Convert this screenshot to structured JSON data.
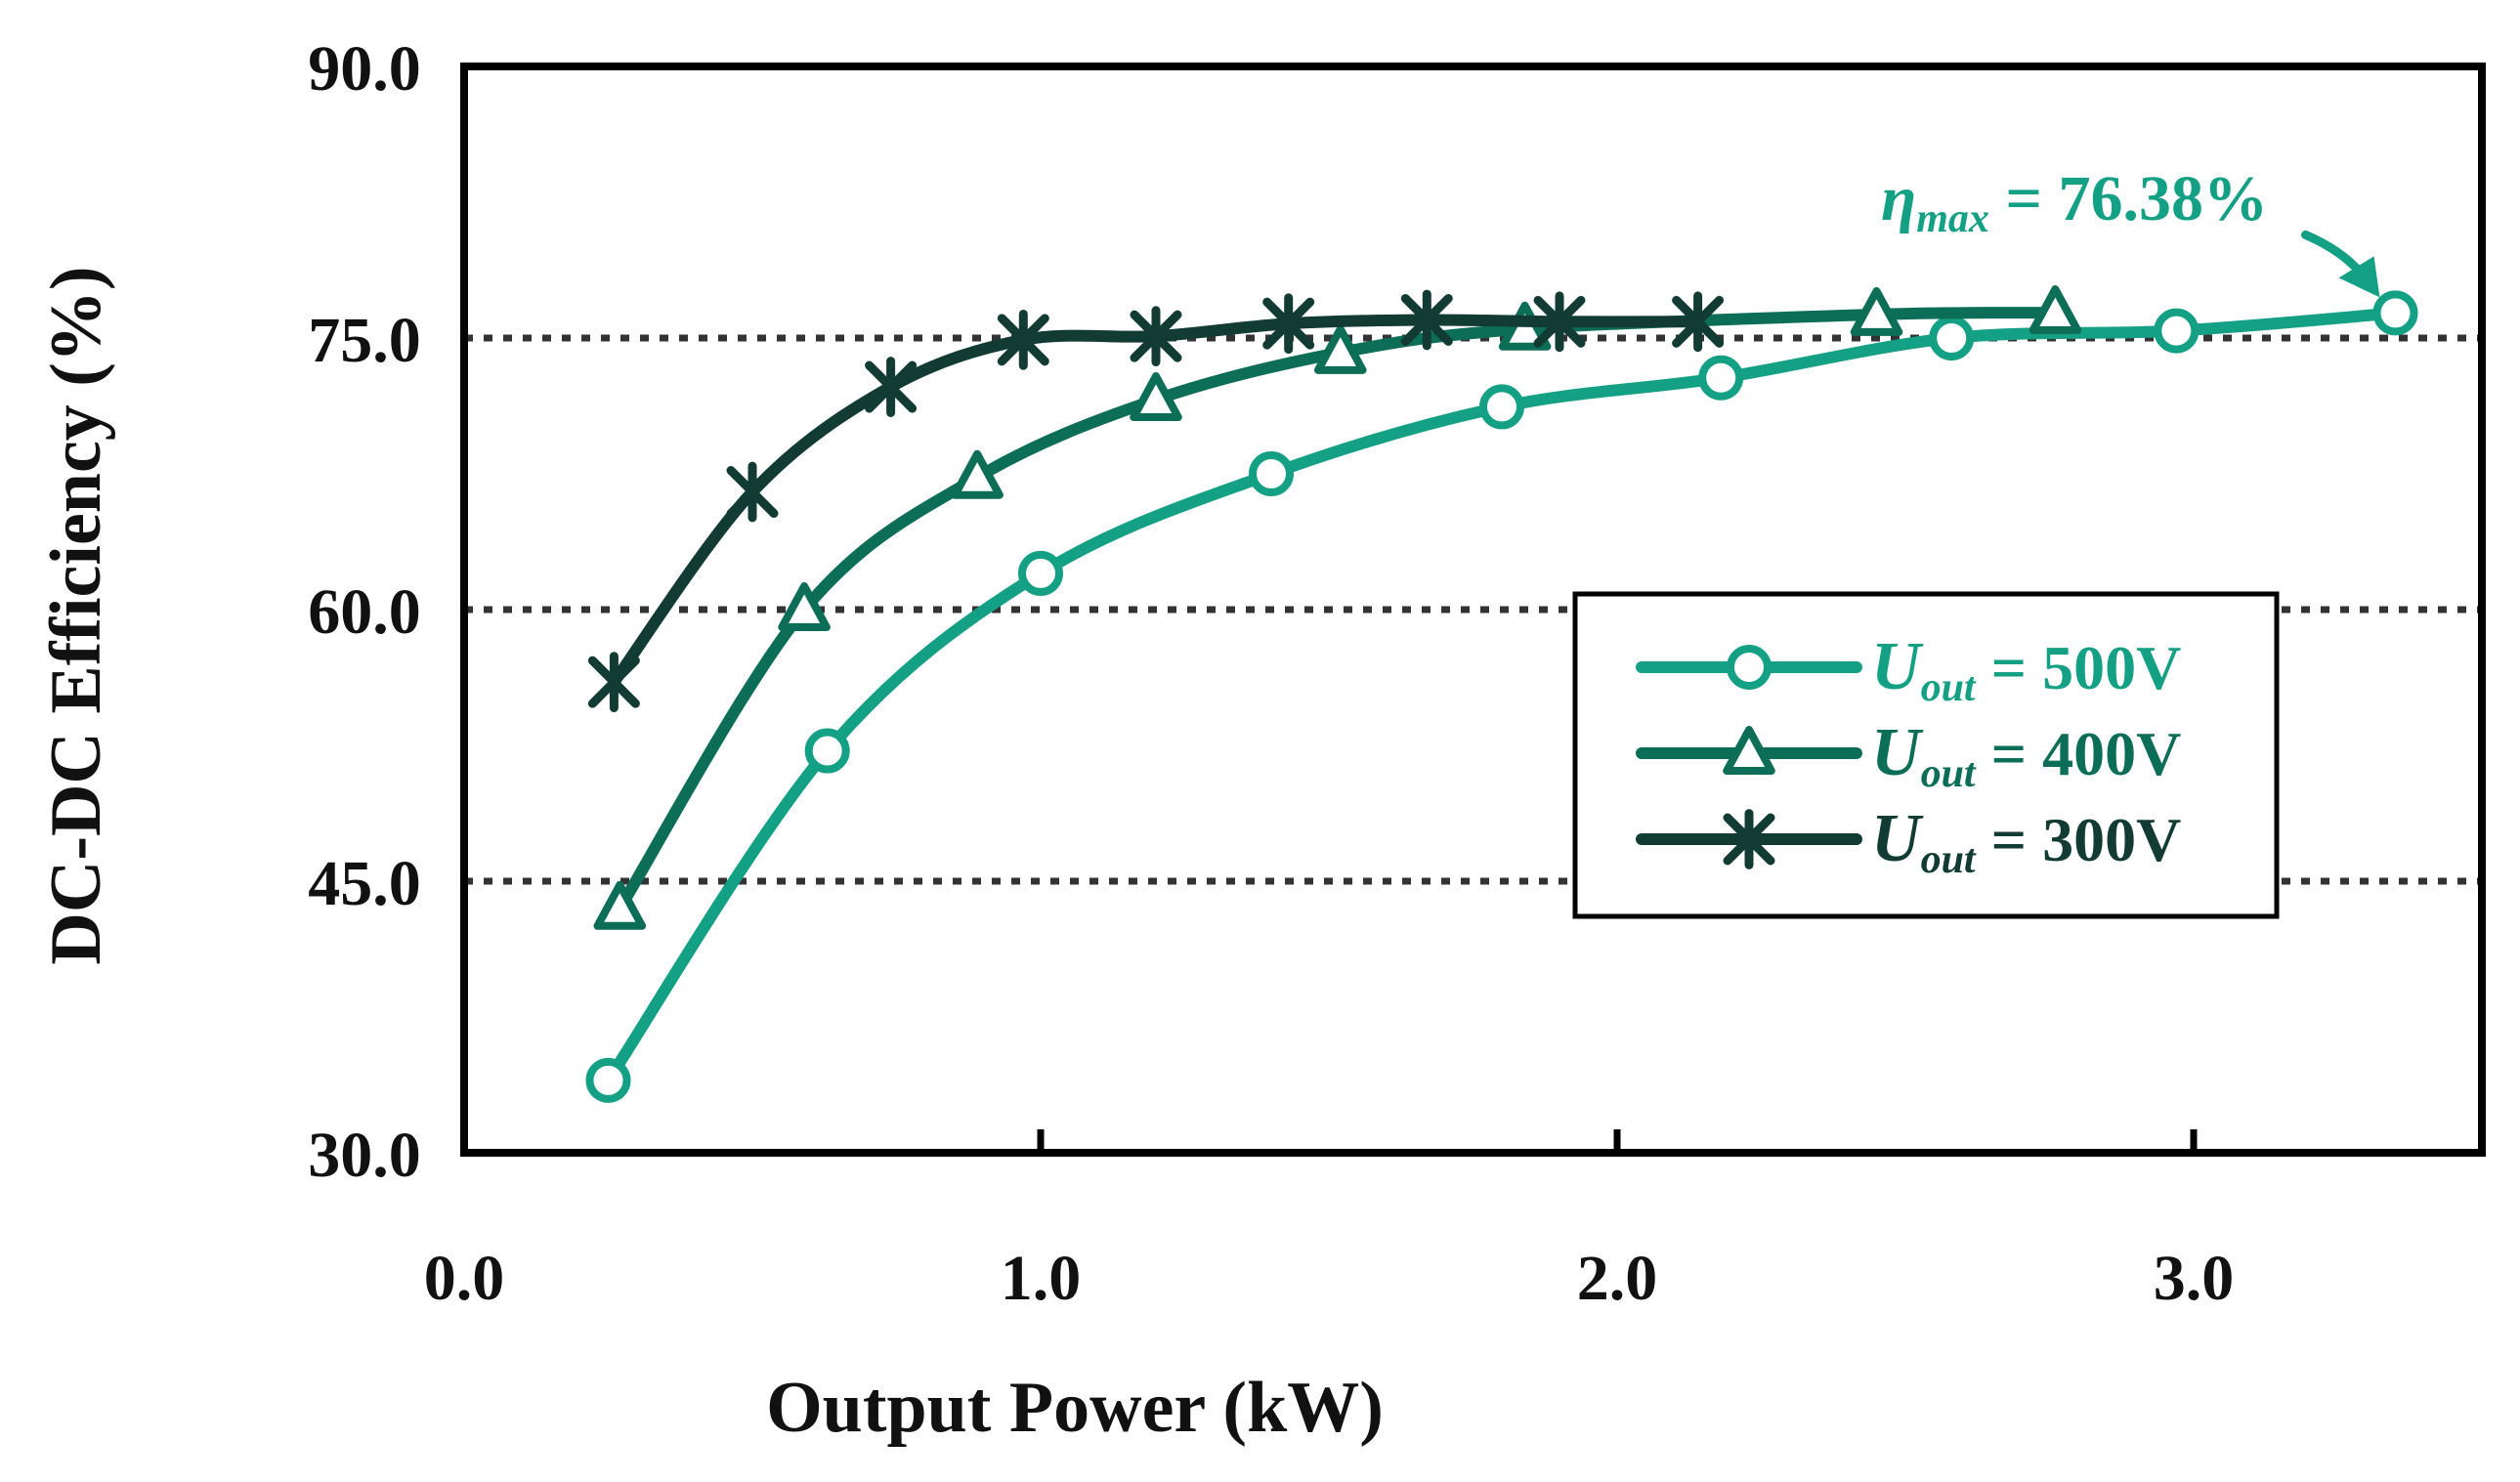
{
  "chart_data": {
    "type": "line",
    "title": "",
    "xlabel": "Output Power (kW)",
    "ylabel": "DC-DC Efficiency (%)",
    "xlim": [
      0.0,
      3.5
    ],
    "ylim": [
      30.0,
      90.0
    ],
    "x_ticks": [
      "0.0",
      "1.0",
      "2.0",
      "3.0"
    ],
    "x_tick_values": [
      0.0,
      1.0,
      2.0,
      3.0
    ],
    "y_ticks": [
      "30.0",
      "45.0",
      "60.0",
      "75.0",
      "90.0"
    ],
    "y_tick_values": [
      30.0,
      45.0,
      60.0,
      75.0,
      90.0
    ],
    "gridlines_y": [
      45.0,
      60.0,
      75.0
    ],
    "grid": "horizontal dotted",
    "legend_position": "center-right",
    "series": [
      {
        "name": "U_out = 500V",
        "symbol": "U",
        "subscript": "out",
        "value_label": " = 500V",
        "marker": "circle",
        "color": "#14a085",
        "x": [
          0.25,
          0.63,
          1.0,
          1.4,
          1.8,
          2.18,
          2.58,
          2.97,
          3.35
        ],
        "y": [
          34.0,
          52.2,
          62.0,
          67.5,
          71.2,
          72.8,
          75.0,
          75.4,
          76.38
        ]
      },
      {
        "name": "U_out = 400V",
        "symbol": "U",
        "subscript": "out",
        "value_label": " = 400V",
        "marker": "triangle",
        "color": "#0d6e58",
        "x": [
          0.27,
          0.59,
          0.89,
          1.2,
          1.52,
          1.84,
          2.45,
          2.76
        ],
        "y": [
          43.5,
          60.0,
          67.3,
          71.6,
          74.2,
          75.5,
          76.3,
          76.4
        ]
      },
      {
        "name": "U_out = 300V",
        "symbol": "U",
        "subscript": "out",
        "value_label": " = 300V",
        "marker": "asterisk",
        "color": "#123b33",
        "x": [
          0.26,
          0.5,
          0.74,
          0.97,
          1.2,
          1.43,
          1.67,
          1.9,
          2.14
        ],
        "y": [
          56.0,
          66.5,
          72.3,
          74.9,
          75.1,
          75.8,
          76.0,
          75.9,
          75.9
        ]
      }
    ],
    "annotations": [
      {
        "symbol": "η",
        "subscript": "max",
        "text": " = 76.38%",
        "points_to": {
          "x": 3.35,
          "y": 76.38
        },
        "color": "#14a085"
      }
    ]
  }
}
